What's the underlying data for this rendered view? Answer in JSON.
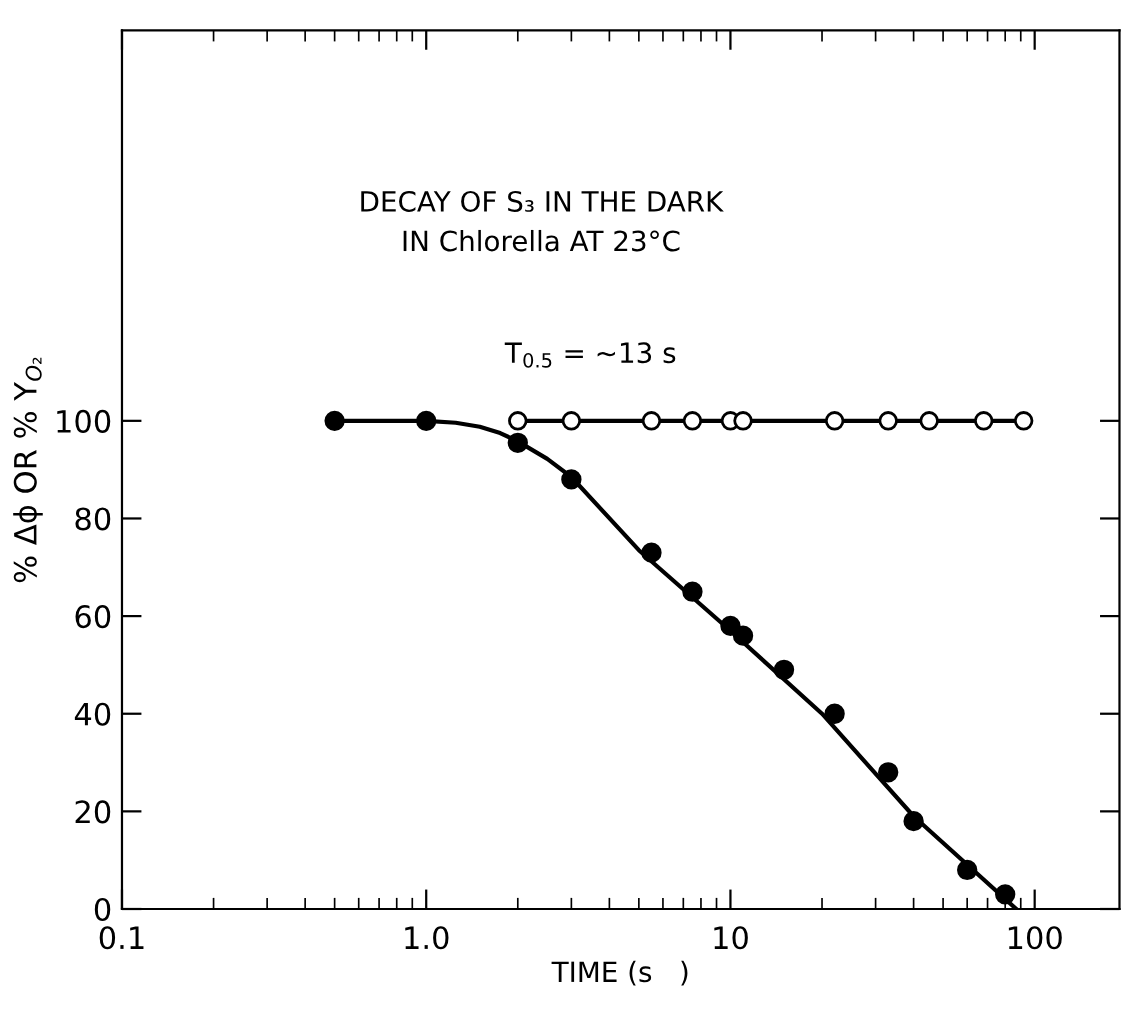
{
  "chart_data": {
    "type": "scatter",
    "xlabel": "TIME (s   )",
    "ylabel": "% Δϕ OR % Y$_{O₂}$",
    "annotations": [
      "DECAY OF S₃ IN THE DARK\nIN Chlorella AT 23°C",
      "T$_{0.5}$ = ~13 s"
    ],
    "log": "x",
    "xlim": [
      0.1,
      190
    ],
    "xticks": [
      {
        "value": 0.1,
        "label": "0.1"
      },
      {
        "value": 1,
        "label": "1.0"
      },
      {
        "value": 10,
        "label": "10"
      },
      {
        "value": 100,
        "label": "100"
      }
    ],
    "ylim": [
      0,
      180
    ],
    "yticks": [
      0,
      20,
      40,
      60,
      80,
      100
    ],
    "grid": false,
    "legend": false,
    "series": [
      {
        "type": "line",
        "marker": "none",
        "color": "#000000",
        "x": [
          0.5,
          1,
          1.25,
          1.5,
          1.75,
          2,
          2.5,
          3,
          5,
          10,
          20,
          40,
          87
        ],
        "values": [
          100,
          100,
          99.6,
          98.8,
          97.5,
          95.8,
          92.2,
          88.5,
          73.5,
          57,
          40,
          19,
          0
        ]
      },
      {
        "type": "line",
        "marker": "circle",
        "color": "#000000",
        "x": [
          2,
          3,
          5.5,
          7.5,
          10,
          11,
          22,
          33,
          45,
          68,
          92
        ],
        "values": [
          100,
          100,
          100,
          100,
          100,
          100,
          100,
          100,
          100,
          100,
          100
        ]
      },
      {
        "marker": "circle",
        "color": "#000000",
        "x": [
          0.5,
          1,
          2,
          3,
          5.5,
          7.5,
          10,
          11,
          15,
          22,
          33,
          40,
          60,
          80
        ],
        "values": [
          100,
          100,
          95.5,
          88,
          73,
          65,
          58,
          56,
          49,
          40,
          28,
          18,
          8,
          3
        ]
      }
    ]
  }
}
